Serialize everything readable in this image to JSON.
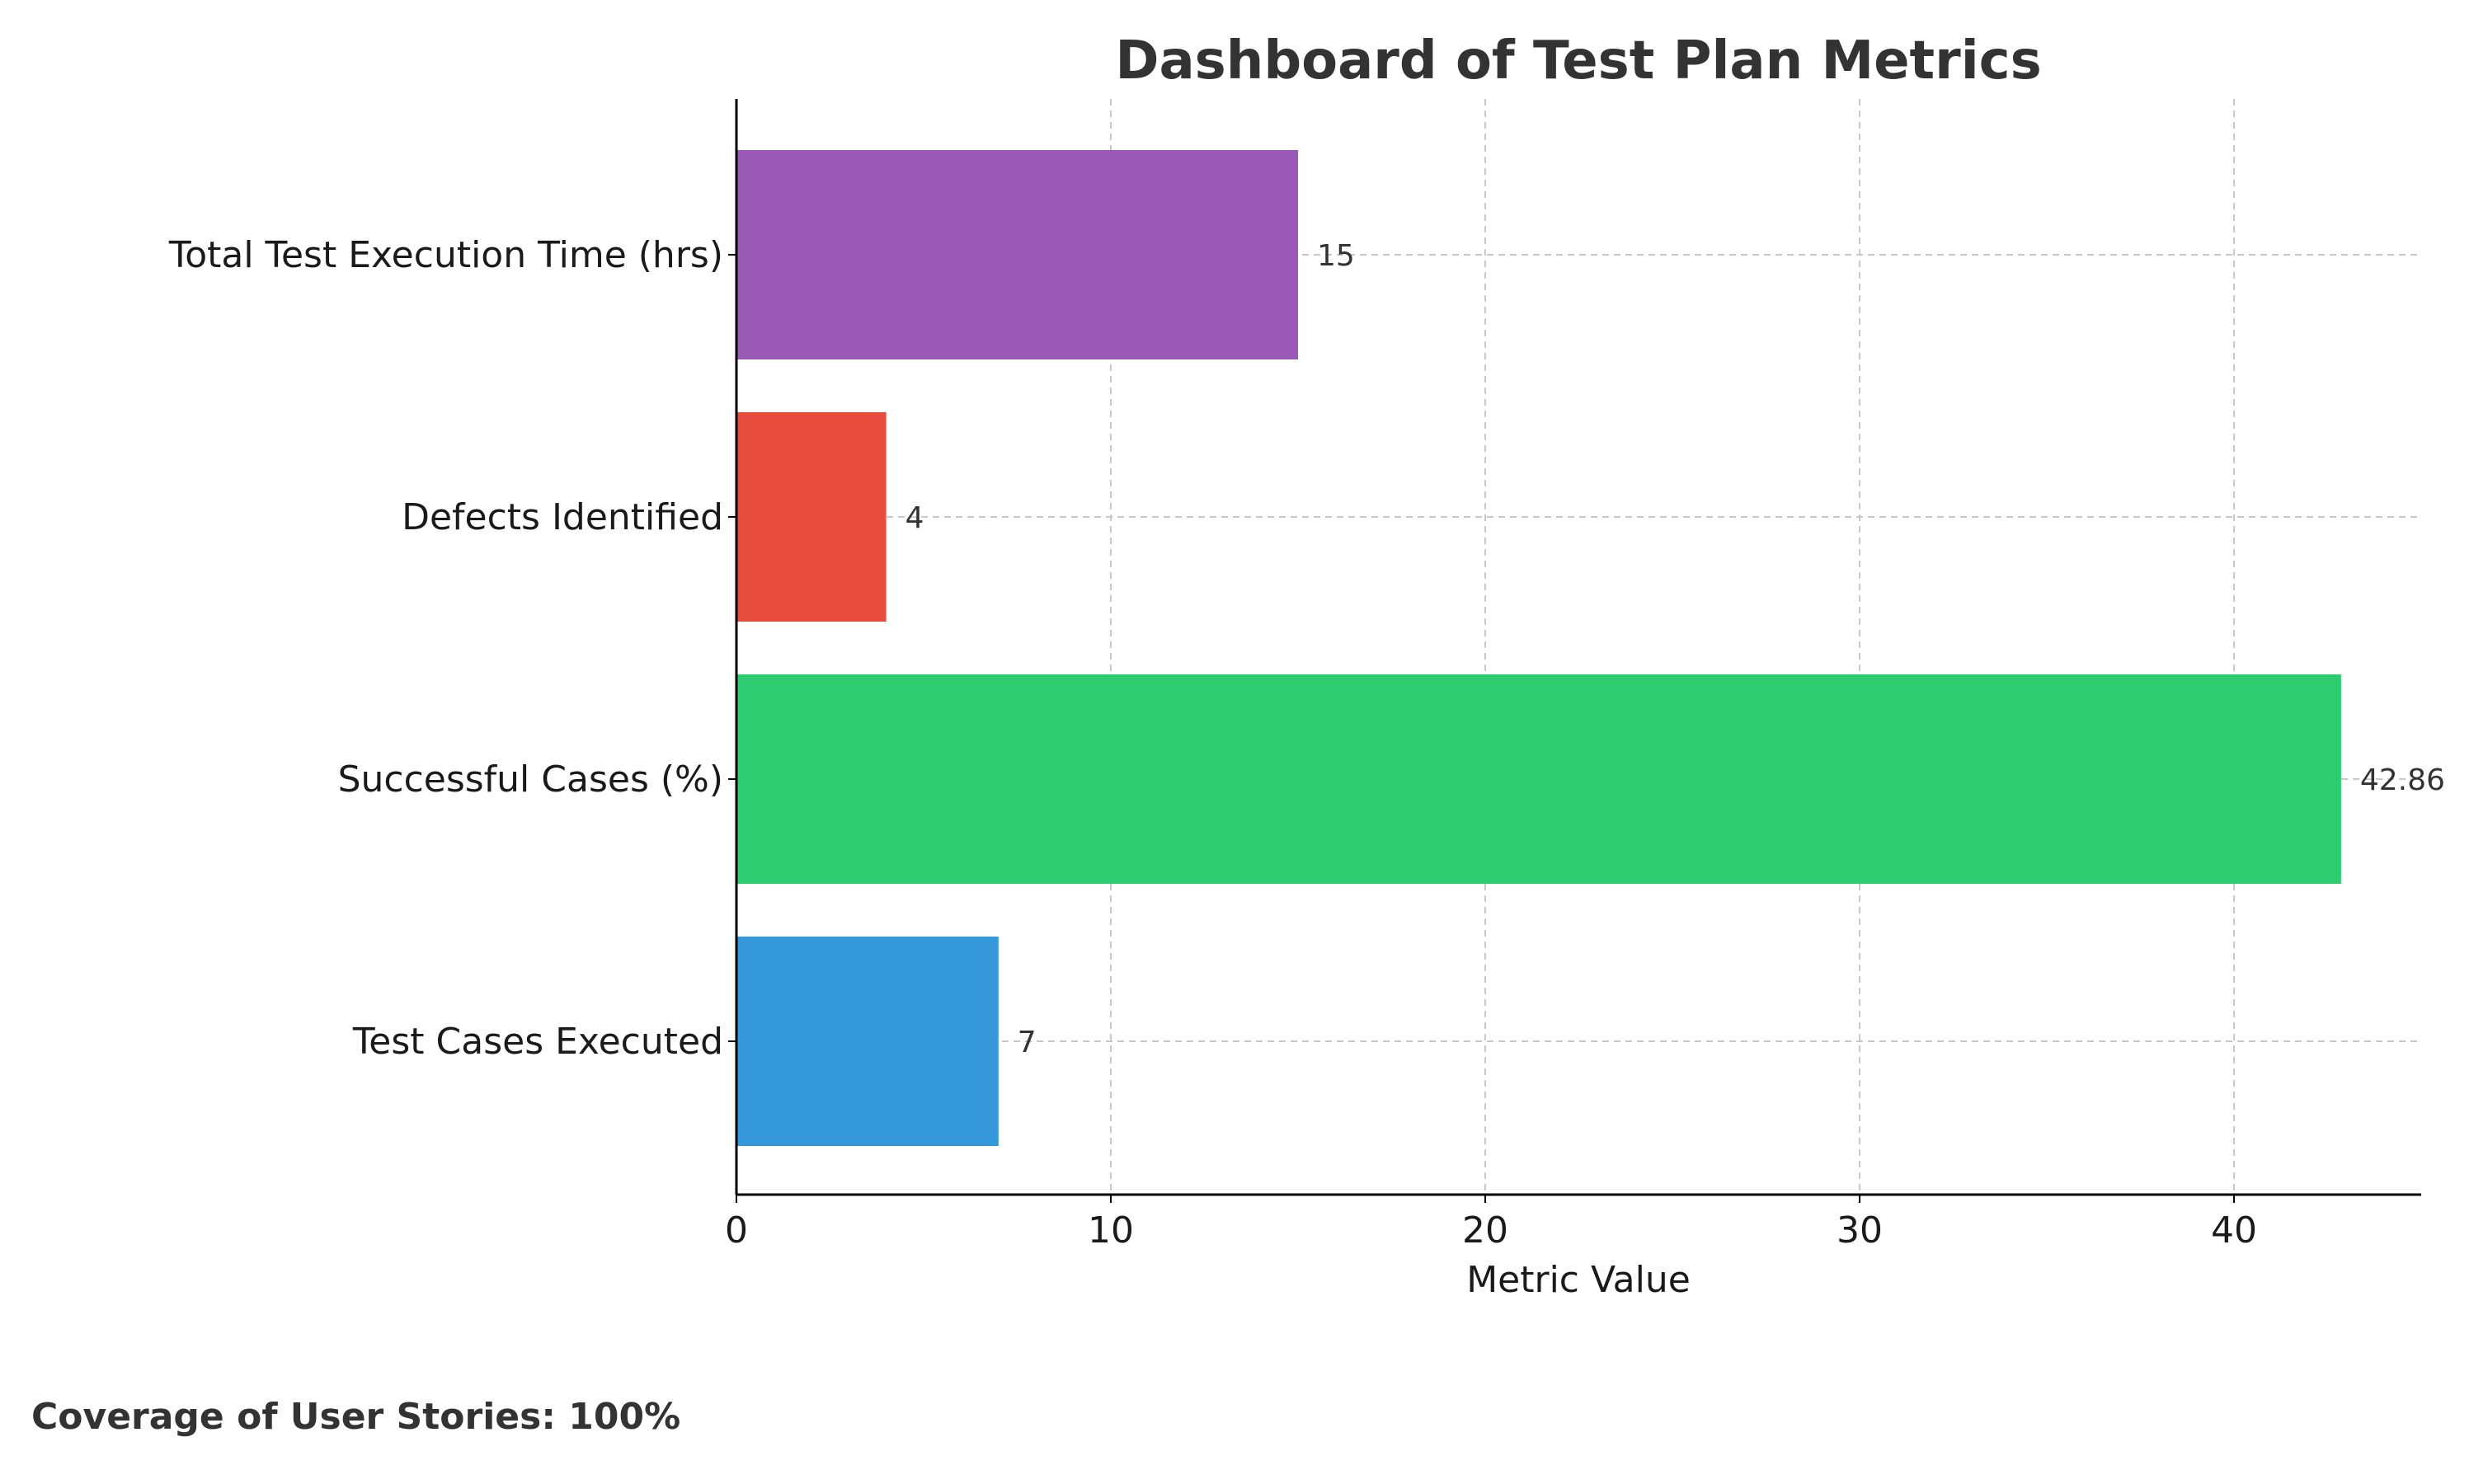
{
  "chart_data": {
    "type": "bar",
    "orientation": "horizontal",
    "title": "Dashboard of Test Plan Metrics",
    "xlabel": "Metric Value",
    "ylabel": "",
    "categories": [
      "Test Cases Executed",
      "Successful Cases (%)",
      "Defects Identified",
      "Total Test Execution Time (hrs)"
    ],
    "values": [
      7,
      42.86,
      4,
      15
    ],
    "value_labels": [
      "7",
      "42.86",
      "4",
      "15"
    ],
    "colors": [
      "#3498db",
      "#2ecc71",
      "#e74c3c",
      "#9b59b6"
    ],
    "xlim": [
      0,
      45
    ],
    "x_ticks": [
      0,
      10,
      20,
      30,
      40
    ],
    "grid": true,
    "legend": "none"
  },
  "footnote": "Coverage of User Stories: 100%"
}
